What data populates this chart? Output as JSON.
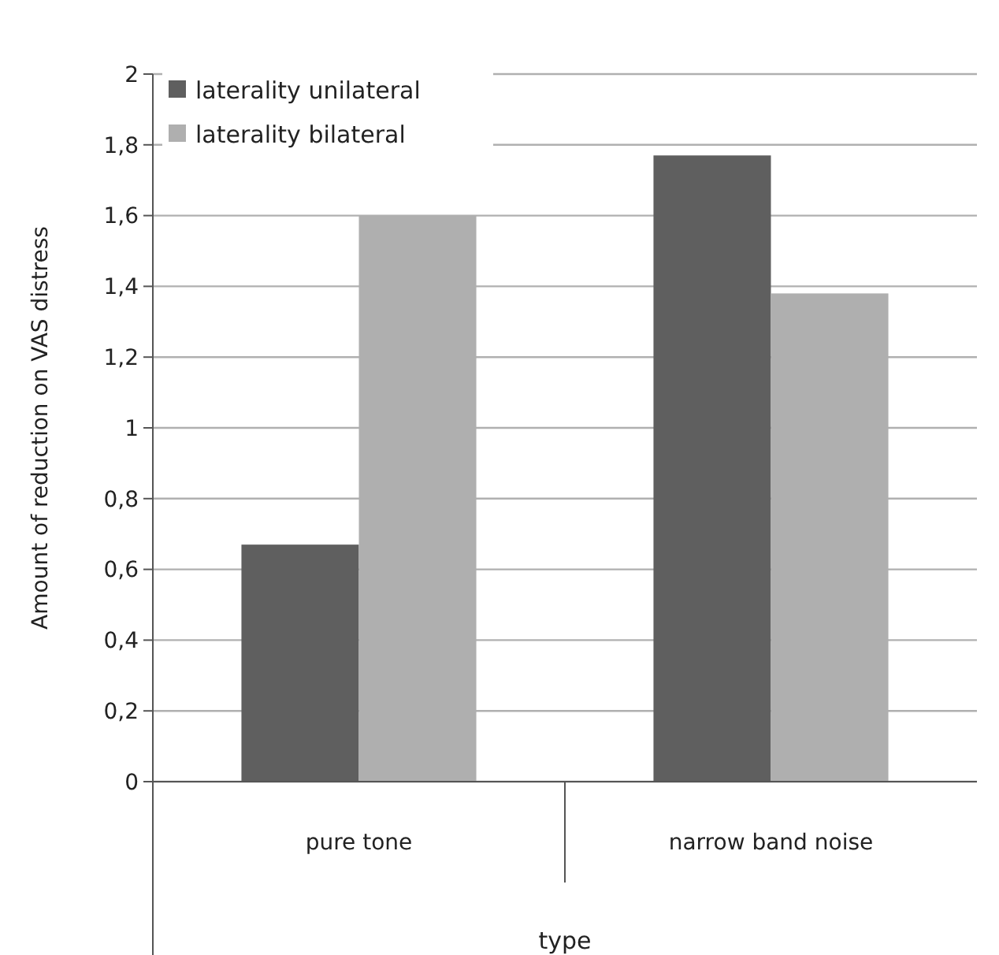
{
  "chart_data": {
    "type": "bar",
    "xlabel": "type",
    "ylabel": "Amount of reduction on VAS distress",
    "categories": [
      "pure tone",
      "narrow band noise"
    ],
    "series": [
      {
        "name": "laterality unilateral",
        "color": "#5f5f5f",
        "values": [
          0.67,
          1.77
        ]
      },
      {
        "name": "laterality bilateral",
        "color": "#afafaf",
        "values": [
          1.6,
          1.38
        ]
      }
    ],
    "ylim": [
      0,
      2
    ],
    "yticks": [
      0,
      {
        "value": 0.2,
        "label": "0,2"
      },
      {
        "value": 0.4,
        "label": "0,4"
      },
      {
        "value": 0.6,
        "label": "0,6"
      },
      {
        "value": 0.8,
        "label": "0,8"
      },
      1,
      {
        "value": 1.2,
        "label": "1,2"
      },
      {
        "value": 1.4,
        "label": "1,4"
      },
      {
        "value": 1.6,
        "label": "1,6"
      },
      {
        "value": 1.8,
        "label": "1,8"
      },
      2
    ],
    "grid": "y",
    "legend": "top left"
  }
}
